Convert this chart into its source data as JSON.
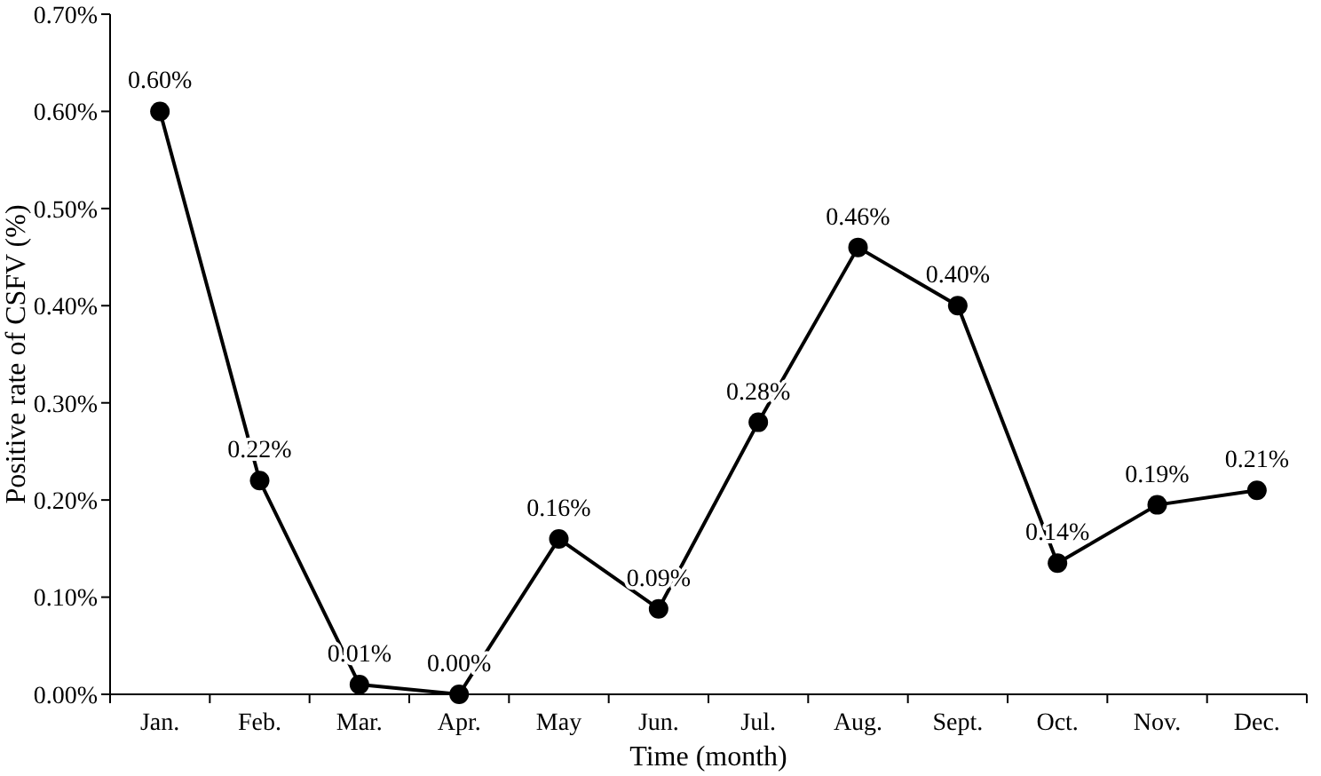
{
  "chart_data": {
    "type": "line",
    "xlabel": "Time (month)",
    "ylabel": "Positive rate of CSFV (%)",
    "categories": [
      "Jan.",
      "Feb.",
      "Mar.",
      "Apr.",
      "May",
      "Jun.",
      "Jul.",
      "Aug.",
      "Sept.",
      "Oct.",
      "Nov.",
      "Dec."
    ],
    "series": [
      {
        "color": "#000000",
        "values": [
          0.6,
          0.22,
          0.01,
          0.0,
          0.16,
          0.088,
          0.28,
          0.46,
          0.4,
          0.135,
          0.195,
          0.21
        ],
        "value_labels": [
          "0.60%",
          "0.22%",
          "0.01%",
          "0.00%",
          "0.16%",
          "0.09%",
          "0.28%",
          "0.46%",
          "0.40%",
          "0.14%",
          "0.19%",
          "0.21%"
        ]
      }
    ],
    "ylim": [
      0,
      0.7
    ],
    "yticks": [
      {
        "value": 0,
        "label": "0.00%"
      },
      {
        "value": 0.1,
        "label": "0.10%"
      },
      {
        "value": 0.2,
        "label": "0.20%"
      },
      {
        "value": 0.3,
        "label": "0.30%"
      },
      {
        "value": 0.4,
        "label": "0.40%"
      },
      {
        "value": 0.5,
        "label": "0.50%"
      },
      {
        "value": 0.6,
        "label": "0.60%"
      },
      {
        "value": 0.7,
        "label": "0.70%"
      }
    ],
    "grid": false,
    "marker": "circle",
    "line_style": "solid"
  }
}
